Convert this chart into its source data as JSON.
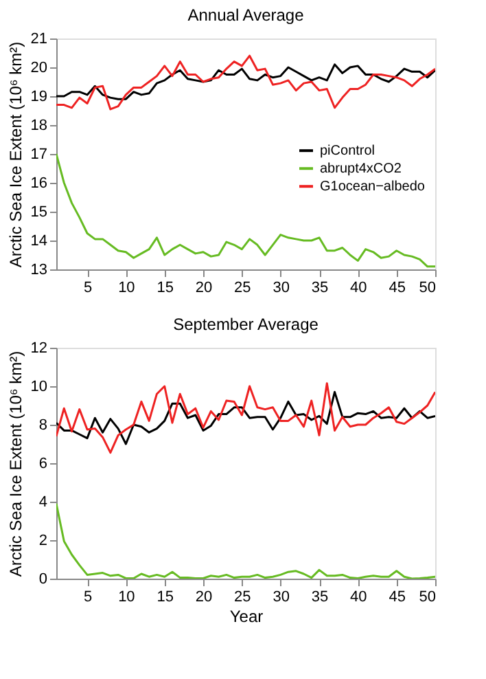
{
  "chart_data": [
    {
      "type": "line",
      "title": "Annual Average",
      "ylabel": "Arctic Sea Ice Extent (10⁶ km²)",
      "x": [
        1,
        2,
        3,
        4,
        5,
        6,
        7,
        8,
        9,
        10,
        11,
        12,
        13,
        14,
        15,
        16,
        17,
        18,
        19,
        20,
        21,
        22,
        23,
        24,
        25,
        26,
        27,
        28,
        29,
        30,
        31,
        32,
        33,
        34,
        35,
        36,
        37,
        38,
        39,
        40,
        41,
        42,
        43,
        44,
        45,
        46,
        47,
        48,
        49,
        50
      ],
      "xlim": [
        1,
        50
      ],
      "xticks": [
        5,
        10,
        15,
        20,
        25,
        30,
        35,
        40,
        45,
        50
      ],
      "ylim": [
        13,
        21
      ],
      "yticks": [
        13,
        14,
        15,
        16,
        17,
        18,
        19,
        20,
        21
      ],
      "grid": false,
      "legend": "right",
      "line_style": "solid",
      "marker": "none",
      "series": [
        {
          "name": "piControl",
          "color": "#000000",
          "values": [
            19.0,
            19.0,
            19.15,
            19.15,
            19.05,
            19.35,
            19.05,
            18.95,
            18.9,
            18.9,
            19.15,
            19.05,
            19.1,
            19.45,
            19.55,
            19.75,
            19.9,
            19.6,
            19.55,
            19.5,
            19.55,
            19.9,
            19.75,
            19.75,
            19.95,
            19.6,
            19.55,
            19.75,
            19.65,
            19.7,
            20.0,
            19.85,
            19.7,
            19.55,
            19.65,
            19.55,
            20.1,
            19.8,
            20.0,
            20.05,
            19.75,
            19.75,
            19.6,
            19.5,
            19.7,
            19.95,
            19.85,
            19.85,
            19.65,
            19.9
          ]
        },
        {
          "name": "abrupt4xCO2",
          "color": "#66bb22",
          "values": [
            17.0,
            16.0,
            15.3,
            14.8,
            14.25,
            14.05,
            14.05,
            13.85,
            13.65,
            13.6,
            13.4,
            13.55,
            13.7,
            14.1,
            13.5,
            13.7,
            13.85,
            13.7,
            13.55,
            13.6,
            13.45,
            13.5,
            13.95,
            13.85,
            13.7,
            14.05,
            13.85,
            13.5,
            13.85,
            14.2,
            14.1,
            14.05,
            14.0,
            14.0,
            14.1,
            13.65,
            13.65,
            13.75,
            13.5,
            13.3,
            13.7,
            13.6,
            13.4,
            13.45,
            13.65,
            13.5,
            13.45,
            13.35,
            13.1,
            13.1
          ]
        },
        {
          "name": "G1ocean−albedo",
          "color": "#ee2222",
          "values": [
            18.7,
            18.7,
            18.6,
            18.95,
            18.75,
            19.3,
            19.35,
            18.55,
            18.65,
            19.05,
            19.3,
            19.3,
            19.5,
            19.7,
            20.05,
            19.7,
            20.2,
            19.75,
            19.75,
            19.5,
            19.6,
            19.65,
            19.95,
            20.2,
            20.05,
            20.4,
            19.9,
            19.95,
            19.4,
            19.45,
            19.55,
            19.2,
            19.45,
            19.5,
            19.2,
            19.25,
            18.6,
            18.95,
            19.25,
            19.25,
            19.4,
            19.75,
            19.75,
            19.7,
            19.65,
            19.55,
            19.35,
            19.6,
            19.75,
            19.95
          ]
        }
      ]
    },
    {
      "type": "line",
      "title": "September Average",
      "xlabel": "Year",
      "ylabel": "Arctic Sea Ice Extent (10⁶ km²)",
      "x": [
        1,
        2,
        3,
        4,
        5,
        6,
        7,
        8,
        9,
        10,
        11,
        12,
        13,
        14,
        15,
        16,
        17,
        18,
        19,
        20,
        21,
        22,
        23,
        24,
        25,
        26,
        27,
        28,
        29,
        30,
        31,
        32,
        33,
        34,
        35,
        36,
        37,
        38,
        39,
        40,
        41,
        42,
        43,
        44,
        45,
        46,
        47,
        48,
        49,
        50
      ],
      "xlim": [
        1,
        50
      ],
      "xticks": [
        5,
        10,
        15,
        20,
        25,
        30,
        35,
        40,
        45,
        50
      ],
      "ylim": [
        0,
        12
      ],
      "yticks": [
        0,
        2,
        4,
        6,
        8,
        10,
        12
      ],
      "grid": false,
      "line_style": "solid",
      "marker": "none",
      "series": [
        {
          "color": "#000000",
          "values": [
            8.1,
            7.7,
            7.7,
            7.5,
            7.3,
            8.35,
            7.6,
            8.3,
            7.8,
            7.0,
            8.0,
            7.9,
            7.6,
            7.8,
            8.2,
            9.1,
            9.1,
            8.35,
            8.5,
            7.7,
            7.95,
            8.55,
            8.55,
            8.9,
            8.9,
            8.35,
            8.4,
            8.4,
            7.75,
            8.35,
            9.2,
            8.5,
            8.55,
            8.25,
            8.45,
            8.05,
            9.7,
            8.4,
            8.4,
            8.6,
            8.55,
            8.7,
            8.35,
            8.4,
            8.35,
            8.85,
            8.35,
            8.7,
            8.35,
            8.45
          ]
        },
        {
          "color": "#66bb22",
          "values": [
            3.9,
            1.95,
            1.25,
            0.7,
            0.2,
            0.25,
            0.3,
            0.15,
            0.2,
            0.02,
            0.02,
            0.25,
            0.1,
            0.2,
            0.1,
            0.35,
            0.05,
            0.05,
            0.02,
            0.02,
            0.15,
            0.1,
            0.2,
            0.05,
            0.1,
            0.1,
            0.2,
            0.05,
            0.1,
            0.2,
            0.35,
            0.4,
            0.25,
            0.05,
            0.45,
            0.15,
            0.15,
            0.2,
            0.05,
            0.02,
            0.1,
            0.15,
            0.1,
            0.1,
            0.4,
            0.1,
            0.0,
            0.02,
            0.05,
            0.1
          ]
        },
        {
          "color": "#ee2222",
          "values": [
            7.4,
            8.85,
            7.65,
            8.8,
            7.75,
            7.8,
            7.35,
            6.55,
            7.45,
            7.75,
            8.0,
            9.2,
            8.2,
            9.6,
            10.0,
            8.1,
            9.6,
            8.55,
            8.85,
            7.85,
            8.7,
            8.25,
            9.25,
            9.2,
            8.5,
            10.0,
            8.9,
            8.8,
            8.9,
            8.2,
            8.2,
            8.5,
            7.9,
            9.25,
            7.45,
            10.15,
            7.7,
            8.4,
            7.9,
            8.0,
            8.0,
            8.35,
            8.6,
            8.9,
            8.15,
            8.05,
            8.35,
            8.65,
            9.0,
            9.7
          ]
        }
      ]
    }
  ]
}
